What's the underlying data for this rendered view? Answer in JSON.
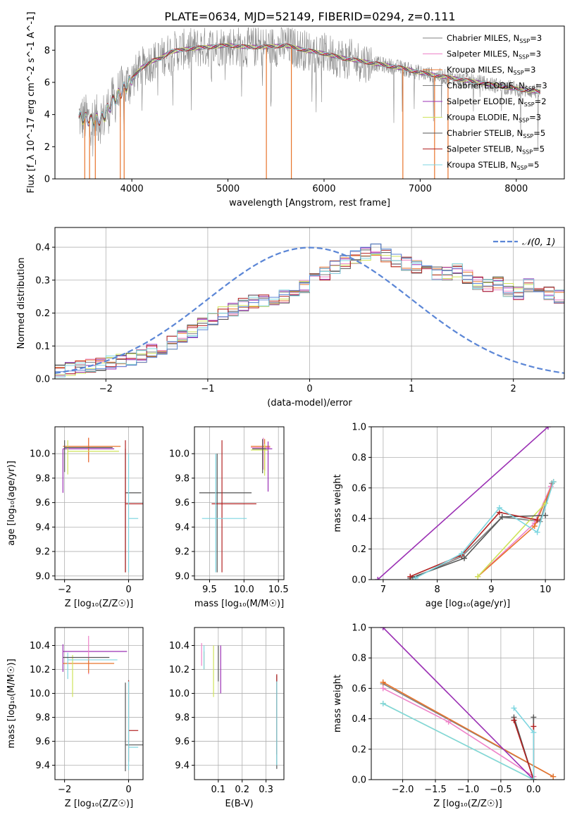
{
  "title": "PLATE=0634, MJD=52149, FIBERID=0294, z=0.111",
  "legend_series": [
    {
      "label": "Chabrier MILES, N",
      "sub": "SSP",
      "suffix": "=3",
      "color": "#808080"
    },
    {
      "label": "Salpeter MILES, N",
      "sub": "SSP",
      "suffix": "=3",
      "color": "#ee82c8"
    },
    {
      "label": "Kroupa MILES, N",
      "sub": "SSP",
      "suffix": "=3",
      "color": "#e8742c"
    },
    {
      "label": "Chabrier ELODIE, N",
      "sub": "SSP",
      "suffix": "=3",
      "color": "#808080"
    },
    {
      "label": "Salpeter ELODIE, N",
      "sub": "SSP",
      "suffix": "=2",
      "color": "#9b30b4"
    },
    {
      "label": "Kroupa ELODIE, N",
      "sub": "SSP",
      "suffix": "=3",
      "color": "#cfe35a"
    },
    {
      "label": "Chabrier STELIB, N",
      "sub": "SSP",
      "suffix": "=5",
      "color": "#555555"
    },
    {
      "label": "Salpeter STELIB, N",
      "sub": "SSP",
      "suffix": "=5",
      "color": "#b22222"
    },
    {
      "label": "Kroupa STELIB, N",
      "sub": "SSP",
      "suffix": "=5",
      "color": "#7ed6e0"
    }
  ],
  "chart_data": [
    {
      "id": "spectrum",
      "type": "line",
      "xlabel": "wavelength [Angstrom, rest frame]",
      "ylabel": "Flux [f_λ 10^-17 erg cm^-2 s^-1 A^-1]",
      "xlim": [
        3200,
        8500
      ],
      "ylim": [
        0,
        9.5
      ],
      "xticks": [
        4000,
        5000,
        6000,
        7000,
        8000
      ],
      "yticks": [
        0,
        2,
        4,
        6,
        8
      ],
      "x_start": 3450,
      "x_end": 8250,
      "data_color": "#888888",
      "continuum_points": [
        [
          3450,
          3.85
        ],
        [
          3600,
          3.6
        ],
        [
          3700,
          3.8
        ],
        [
          3800,
          4.8
        ],
        [
          3900,
          5.5
        ],
        [
          4000,
          6.2
        ],
        [
          4100,
          6.9
        ],
        [
          4200,
          7.3
        ],
        [
          4300,
          7.5
        ],
        [
          4400,
          7.9
        ],
        [
          4600,
          8.1
        ],
        [
          4800,
          8.2
        ],
        [
          5000,
          8.3
        ],
        [
          5200,
          8.2
        ],
        [
          5400,
          8.2
        ],
        [
          5600,
          8.3
        ],
        [
          5800,
          8.0
        ],
        [
          6000,
          7.8
        ],
        [
          6200,
          7.5
        ],
        [
          6400,
          7.3
        ],
        [
          6600,
          7.1
        ],
        [
          6800,
          6.9
        ],
        [
          7000,
          6.6
        ],
        [
          7200,
          6.4
        ],
        [
          7400,
          6.2
        ],
        [
          7600,
          6.0
        ],
        [
          7800,
          5.8
        ],
        [
          8000,
          5.6
        ],
        [
          8250,
          5.4
        ]
      ],
      "spikes": [
        [
          3510,
          0
        ],
        [
          3560,
          0
        ],
        [
          3620,
          0
        ],
        [
          3880,
          0
        ],
        [
          3920,
          0
        ],
        [
          5400,
          0
        ],
        [
          5660,
          0
        ],
        [
          6820,
          0
        ],
        [
          7150,
          0
        ],
        [
          7290,
          0
        ]
      ]
    },
    {
      "id": "residuals",
      "type": "histogram",
      "xlabel": "(data-model)/error",
      "ylabel": "Normed distribution",
      "xlim": [
        -2.5,
        2.5
      ],
      "ylim": [
        0,
        0.46
      ],
      "xticks": [
        -2,
        -1,
        0,
        1,
        2
      ],
      "yticks": [
        0.0,
        0.1,
        0.2,
        0.3,
        0.4
      ],
      "legend": "𝒩(0, 1)",
      "normal_color": "#5b86d6",
      "bin_width": 0.1,
      "base_values": [
        0.025,
        0.03,
        0.035,
        0.04,
        0.045,
        0.05,
        0.055,
        0.06,
        0.07,
        0.085,
        0.095,
        0.11,
        0.13,
        0.145,
        0.165,
        0.18,
        0.2,
        0.21,
        0.225,
        0.235,
        0.24,
        0.245,
        0.25,
        0.26,
        0.28,
        0.3,
        0.32,
        0.34,
        0.355,
        0.37,
        0.38,
        0.39,
        0.375,
        0.36,
        0.35,
        0.34,
        0.33,
        0.32,
        0.32,
        0.33,
        0.31,
        0.29,
        0.285,
        0.29,
        0.27,
        0.26,
        0.285,
        0.28,
        0.26,
        0.25,
        0.225,
        0.23,
        0.26,
        0.24,
        0.2,
        0.21,
        0.19,
        0.17,
        0.16,
        0.14,
        0.12,
        0.11,
        0.1,
        0.1,
        0.09,
        0.08,
        0.075,
        0.07,
        0.065,
        0.06,
        0.05,
        0.045,
        0.04,
        0.035,
        0.03
      ],
      "series_colors": [
        "#ee82c8",
        "#e8742c",
        "#808080",
        "#9b30b4",
        "#cfe35a",
        "#555555",
        "#b22222",
        "#7ed6e0",
        "#5b86d6"
      ]
    },
    {
      "id": "age_vs_Z",
      "type": "scatter",
      "xlabel": "Z [log₁₀(Z/Z☉)]",
      "ylabel": "age  [log₁₀(age/yr)]",
      "xlim": [
        -2.3,
        0.45
      ],
      "ylim": [
        8.97,
        10.22
      ],
      "xticks": [
        -2,
        0
      ],
      "yticks": [
        9.0,
        9.2,
        9.4,
        9.6,
        9.8,
        10.0
      ],
      "points": [
        {
          "x": -2.05,
          "y": 10.06,
          "xerr": [
            0.0,
            1.8
          ],
          "yerr": [
            0.0,
            0.0
          ],
          "color": "#e8742c"
        },
        {
          "x": -2.05,
          "y": 10.04,
          "xerr": [
            0.0,
            1.6
          ],
          "yerr": [
            0.36,
            0.0
          ],
          "color": "#9b30b4"
        },
        {
          "x": -1.25,
          "y": 10.05,
          "xerr": [
            0.0,
            0.0
          ],
          "yerr": [
            0.12,
            0.08
          ],
          "color": "#ee82c8"
        },
        {
          "x": -1.25,
          "y": 10.03,
          "xerr": [
            0.0,
            0.0
          ],
          "yerr": [
            0.1,
            0.1
          ],
          "color": "#e8742c"
        },
        {
          "x": -1.9,
          "y": 10.02,
          "xerr": [
            0.0,
            1.6
          ],
          "yerr": [
            0.19,
            0.09
          ],
          "color": "#cfe35a"
        },
        {
          "x": -2.0,
          "y": 10.05,
          "xerr": [
            0.0,
            1.5
          ],
          "yerr": [
            0.2,
            0.06
          ],
          "color": "#555555"
        },
        {
          "x": -0.1,
          "y": 9.68,
          "xerr": [
            0.0,
            0.5
          ],
          "yerr": [
            0.65,
            0.36
          ],
          "color": "#555555"
        },
        {
          "x": -0.1,
          "y": 9.59,
          "xerr": [
            0.0,
            0.55
          ],
          "yerr": [
            0.56,
            0.52
          ],
          "color": "#b22222"
        },
        {
          "x": 0.0,
          "y": 9.47,
          "xerr": [
            0.0,
            0.3
          ],
          "yerr": [
            0.44,
            0.53
          ],
          "color": "#7ed6e0"
        }
      ]
    },
    {
      "id": "age_vs_mass",
      "type": "scatter",
      "xlabel": "mass [log₁₀(M/M☉)]",
      "ylabel": "",
      "xlim": [
        9.28,
        10.58
      ],
      "ylim": [
        8.97,
        10.22
      ],
      "xticks": [
        9.5,
        10.0,
        10.5
      ],
      "yticks": [
        9.0,
        9.2,
        9.4,
        9.6,
        9.8,
        10.0
      ],
      "points": [
        {
          "x": 10.28,
          "y": 10.05,
          "xerr": [
            0.18,
            0.1
          ],
          "yerr": [
            0.18,
            0.08
          ],
          "color": "#ee82c8"
        },
        {
          "x": 10.3,
          "y": 10.06,
          "xerr": [
            0.2,
            0.08
          ],
          "yerr": [
            0.2,
            0.06
          ],
          "color": "#e8742c"
        },
        {
          "x": 10.35,
          "y": 10.04,
          "xerr": [
            0.23,
            0.06
          ],
          "yerr": [
            0.35,
            0.06
          ],
          "color": "#9b30b4"
        },
        {
          "x": 10.3,
          "y": 10.03,
          "xerr": [
            0.2,
            0.05
          ],
          "yerr": [
            0.21,
            0.05
          ],
          "color": "#cfe35a"
        },
        {
          "x": 10.27,
          "y": 10.04,
          "xerr": [
            0.15,
            0.05
          ],
          "yerr": [
            0.2,
            0.08
          ],
          "color": "#555555"
        },
        {
          "x": 9.61,
          "y": 9.68,
          "xerr": [
            0.26,
            0.5
          ],
          "yerr": [
            0.65,
            0.32
          ],
          "color": "#555555"
        },
        {
          "x": 9.68,
          "y": 9.59,
          "xerr": [
            0.15,
            0.5
          ],
          "yerr": [
            0.56,
            0.52
          ],
          "color": "#b22222"
        },
        {
          "x": 9.59,
          "y": 9.47,
          "xerr": [
            0.2,
            0.45
          ],
          "yerr": [
            0.44,
            0.53
          ],
          "color": "#7ed6e0"
        }
      ]
    },
    {
      "id": "mass_weight_vs_age",
      "type": "line",
      "xlabel": "age  [log₁₀(age/yr)]",
      "ylabel": "mass weight",
      "xlim": [
        6.78,
        10.35
      ],
      "ylim": [
        0,
        1.0
      ],
      "xticks": [
        7,
        8,
        9,
        10
      ],
      "yticks": [
        0.0,
        0.2,
        0.4,
        0.6,
        0.8,
        1.0
      ],
      "series": [
        {
          "color": "#808080",
          "x": [
            7.55,
            8.45,
            9.2,
            9.9,
            10.12
          ],
          "y": [
            0.01,
            0.15,
            0.41,
            0.38,
            0.63
          ]
        },
        {
          "color": "#ee82c8",
          "x": [
            8.75,
            9.8,
            10.1
          ],
          "y": [
            0.02,
            0.37,
            0.61
          ]
        },
        {
          "color": "#e8742c",
          "x": [
            8.75,
            9.8,
            10.15
          ],
          "y": [
            0.02,
            0.35,
            0.64
          ]
        },
        {
          "color": "#cfe35a",
          "x": [
            8.75,
            10.0
          ],
          "y": [
            0.02,
            0.5
          ]
        },
        {
          "color": "#9b30b4",
          "x": [
            6.9,
            10.05
          ],
          "y": [
            0.0,
            1.0
          ]
        },
        {
          "color": "#555555",
          "x": [
            7.5,
            8.5,
            9.2,
            10.0
          ],
          "y": [
            0.01,
            0.14,
            0.41,
            0.42
          ]
        },
        {
          "color": "#b22222",
          "x": [
            7.5,
            8.45,
            9.15,
            9.85
          ],
          "y": [
            0.02,
            0.16,
            0.44,
            0.39
          ]
        },
        {
          "color": "#7ed6e0",
          "x": [
            7.6,
            8.45,
            9.15,
            9.85,
            10.15
          ],
          "y": [
            0.01,
            0.17,
            0.47,
            0.31,
            0.64
          ]
        }
      ]
    },
    {
      "id": "mass_vs_Z",
      "type": "scatter",
      "xlabel": "Z [log₁₀(Z/Z☉)]",
      "ylabel": "mass [log₁₀(M/M☉)]",
      "xlim": [
        -2.3,
        0.45
      ],
      "ylim": [
        9.28,
        10.55
      ],
      "xticks": [
        -2,
        0
      ],
      "yticks": [
        9.4,
        9.6,
        9.8,
        10.0,
        10.2,
        10.4
      ],
      "points": [
        {
          "x": -2.05,
          "y": 10.35,
          "xerr": [
            0.0,
            2.0
          ],
          "yerr": [
            0.17,
            0.06
          ],
          "color": "#9b30b4"
        },
        {
          "x": -1.25,
          "y": 10.25,
          "xerr": [
            0.0,
            0.0
          ],
          "yerr": [
            0.09,
            0.23
          ],
          "color": "#ee82c8"
        },
        {
          "x": -2.05,
          "y": 10.25,
          "xerr": [
            0.0,
            1.6
          ],
          "yerr": [
            0.0,
            0.0
          ],
          "color": "#e8742c"
        },
        {
          "x": -1.25,
          "y": 10.24,
          "xerr": [
            0.0,
            0.0
          ],
          "yerr": [
            0.07,
            0.05
          ],
          "color": "#e8742c"
        },
        {
          "x": -1.75,
          "y": 10.22,
          "xerr": [
            0.0,
            0.0
          ],
          "yerr": [
            0.25,
            0.1
          ],
          "color": "#cfe35a"
        },
        {
          "x": -1.9,
          "y": 10.28,
          "xerr": [
            0.0,
            1.55
          ],
          "yerr": [
            0.16,
            0.06
          ],
          "color": "#7ed6e0"
        },
        {
          "x": -2.05,
          "y": 10.3,
          "xerr": [
            0.0,
            1.45
          ],
          "yerr": [
            0.0,
            0.0
          ],
          "color": "#555555"
        },
        {
          "x": 0.0,
          "y": 9.69,
          "xerr": [
            0.0,
            0.3
          ],
          "yerr": [
            0.26,
            0.42
          ],
          "color": "#b22222"
        },
        {
          "x": -0.1,
          "y": 9.57,
          "xerr": [
            0.0,
            0.55
          ],
          "yerr": [
            0.22,
            0.52
          ],
          "color": "#555555"
        },
        {
          "x": 0.0,
          "y": 9.55,
          "xerr": [
            0.0,
            0.3
          ],
          "yerr": [
            0.19,
            0.55
          ],
          "color": "#7ed6e0"
        }
      ]
    },
    {
      "id": "mass_vs_ebv",
      "type": "scatter",
      "xlabel": "E(B-V)",
      "ylabel": "",
      "xlim": [
        0.0,
        0.375
      ],
      "ylim": [
        9.28,
        10.55
      ],
      "xticks": [
        0.1,
        0.2,
        0.3
      ],
      "yticks": [
        9.4,
        9.6,
        9.8,
        10.0,
        10.2,
        10.4
      ],
      "points": [
        {
          "x": 0.03,
          "y": 10.3,
          "xerr": [
            0.0,
            0.0
          ],
          "yerr": [
            0.07,
            0.12
          ],
          "color": "#ee82c8"
        },
        {
          "x": 0.04,
          "y": 10.25,
          "xerr": [
            0.0,
            0.0
          ],
          "yerr": [
            0.05,
            0.1
          ],
          "color": "#e8742c"
        },
        {
          "x": 0.04,
          "y": 10.3,
          "xerr": [
            0.0,
            0.0
          ],
          "yerr": [
            0.1,
            0.1
          ],
          "color": "#7ed6e0"
        },
        {
          "x": 0.11,
          "y": 10.35,
          "xerr": [
            0.0,
            0.0
          ],
          "yerr": [
            0.35,
            0.05
          ],
          "color": "#9b30b4"
        },
        {
          "x": 0.08,
          "y": 10.25,
          "xerr": [
            0.0,
            0.0
          ],
          "yerr": [
            0.28,
            0.15
          ],
          "color": "#cfe35a"
        },
        {
          "x": 0.1,
          "y": 10.3,
          "xerr": [
            0.0,
            0.0
          ],
          "yerr": [
            0.2,
            0.1
          ],
          "color": "#555555"
        },
        {
          "x": 0.345,
          "y": 9.57,
          "xerr": [
            0.0,
            0.0
          ],
          "yerr": [
            0.2,
            0.58
          ],
          "color": "#555555"
        },
        {
          "x": 0.345,
          "y": 9.69,
          "xerr": [
            0.0,
            0.0
          ],
          "yerr": [
            0.2,
            0.47
          ],
          "color": "#b22222"
        },
        {
          "x": 0.345,
          "y": 9.55,
          "xerr": [
            0.0,
            0.0
          ],
          "yerr": [
            0.15,
            0.55
          ],
          "color": "#7ed6e0"
        }
      ]
    },
    {
      "id": "mass_weight_vs_Z",
      "type": "line",
      "xlabel": "Z [log₁₀(Z/Z☉)]",
      "ylabel": "mass weight",
      "xlim": [
        -2.48,
        0.47
      ],
      "ylim": [
        0,
        1.0
      ],
      "xticks": [
        -2.0,
        -1.5,
        -1.0,
        -0.5,
        0.0
      ],
      "yticks": [
        0.0,
        0.2,
        0.4,
        0.6,
        0.8,
        1.0
      ],
      "series": [
        {
          "color": "#808080",
          "x": [
            -2.3,
            0.3
          ],
          "y": [
            0.63,
            0.02
          ]
        },
        {
          "color": "#ee82c8",
          "x": [
            -2.3,
            -1.3,
            0.0
          ],
          "y": [
            0.6,
            0.38,
            0.02
          ]
        },
        {
          "color": "#e8742c",
          "x": [
            -2.3,
            0.3
          ],
          "y": [
            0.64,
            0.02
          ]
        },
        {
          "color": "#cfe35a",
          "x": [
            -2.3,
            0.0
          ],
          "y": [
            0.5,
            0.0
          ]
        },
        {
          "color": "#9b30b4",
          "x": [
            -2.3,
            0.0
          ],
          "y": [
            1.0,
            0.0
          ]
        },
        {
          "color": "#555555",
          "x": [
            -0.3,
            0.0,
            0.0
          ],
          "y": [
            0.41,
            0.0,
            0.41
          ]
        },
        {
          "color": "#b22222",
          "x": [
            -0.3,
            0.0,
            0.0
          ],
          "y": [
            0.39,
            0.0,
            0.35
          ]
        },
        {
          "color": "#7ed6e0",
          "x": [
            -2.3,
            0.0,
            0.0,
            -0.3
          ],
          "y": [
            0.5,
            0.0,
            0.31,
            0.47
          ]
        }
      ]
    }
  ]
}
